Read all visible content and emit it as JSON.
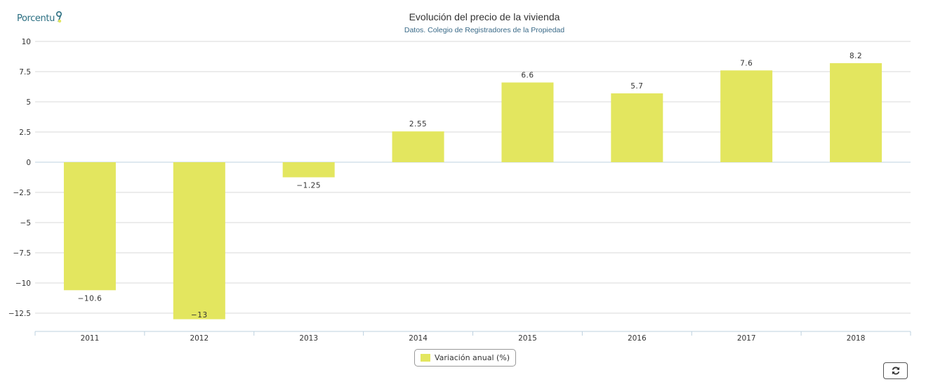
{
  "brand": {
    "logo_text": "Porcentu"
  },
  "colors": {
    "bar": "#e3e65f",
    "grid": "#d8d8d8",
    "zero_line": "#bfd3e2",
    "axis": "#bcd0df",
    "label": "#333333",
    "logo": "#2b6f82"
  },
  "legend": {
    "label": "Variación anual (%)"
  },
  "toolbar": {
    "refresh_icon": "refresh-icon"
  },
  "chart_data": {
    "type": "bar",
    "title": "Evolución del precio de la vivienda",
    "subtitle": "Datos. Colegio de Registradores de la Propiedad",
    "categories": [
      "2011",
      "2012",
      "2013",
      "2014",
      "2015",
      "2016",
      "2017",
      "2018"
    ],
    "series": [
      {
        "name": "Variación anual (%)",
        "values": [
          -10.6,
          -13,
          -1.25,
          2.55,
          6.6,
          5.7,
          7.6,
          8.2
        ]
      }
    ],
    "data_labels": [
      "−10.6",
      "−13",
      "−1.25",
      "2.55",
      "6.6",
      "5.7",
      "7.6",
      "8.2"
    ],
    "yticks": [
      10,
      7.5,
      5,
      2.5,
      0,
      -2.5,
      -5,
      -7.5,
      -10,
      -12.5
    ],
    "ytick_labels": [
      "10",
      "7.5",
      "5",
      "2.5",
      "0",
      "−2.5",
      "−5",
      "−7.5",
      "−10",
      "−12.5"
    ],
    "ylim": [
      -14,
      10
    ],
    "grid": true,
    "legend_position": "bottom-center"
  }
}
